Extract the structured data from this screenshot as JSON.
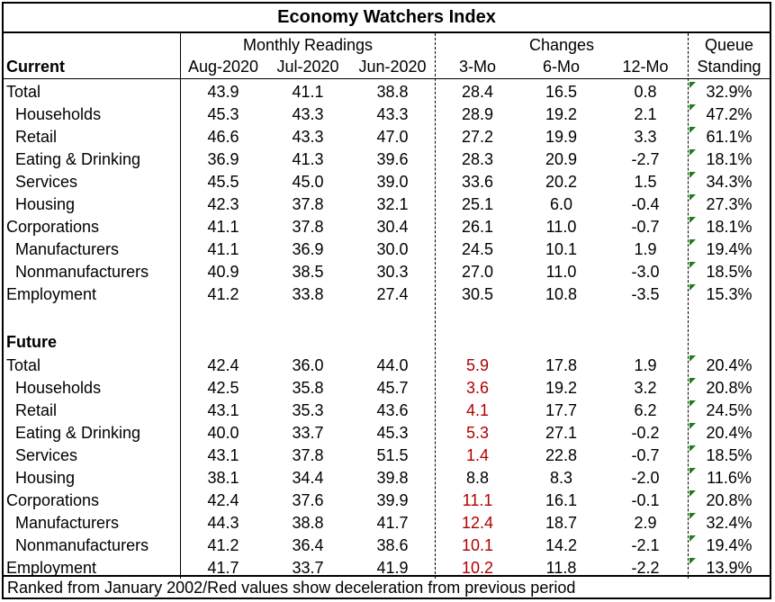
{
  "title": "Economy Watchers Index",
  "group_headers": {
    "monthly": "Monthly Readings",
    "changes": "Changes",
    "queue_line1": "Queue",
    "queue_line2": "Standing"
  },
  "columns": [
    "Aug-2020",
    "Jul-2020",
    "Jun-2020",
    "3-Mo",
    "6-Mo",
    "12-Mo"
  ],
  "sections": [
    {
      "label": "Current",
      "rows": [
        {
          "name": "Total",
          "indent": false,
          "values": [
            "43.9",
            "41.1",
            "38.8",
            "28.4",
            "16.5",
            "0.8"
          ],
          "queue": "32.9%",
          "red3mo": false
        },
        {
          "name": "Households",
          "indent": true,
          "values": [
            "45.3",
            "43.3",
            "43.3",
            "28.9",
            "19.2",
            "2.1"
          ],
          "queue": "47.2%",
          "red3mo": false
        },
        {
          "name": "Retail",
          "indent": true,
          "values": [
            "46.6",
            "43.3",
            "47.0",
            "27.2",
            "19.9",
            "3.3"
          ],
          "queue": "61.1%",
          "red3mo": false
        },
        {
          "name": "Eating & Drinking",
          "indent": true,
          "values": [
            "36.9",
            "41.3",
            "39.6",
            "28.3",
            "20.9",
            "-2.7"
          ],
          "queue": "18.1%",
          "red3mo": false
        },
        {
          "name": "Services",
          "indent": true,
          "values": [
            "45.5",
            "45.0",
            "39.0",
            "33.6",
            "20.2",
            "1.5"
          ],
          "queue": "34.3%",
          "red3mo": false
        },
        {
          "name": "Housing",
          "indent": true,
          "values": [
            "42.3",
            "37.8",
            "32.1",
            "25.1",
            "6.0",
            "-0.4"
          ],
          "queue": "27.3%",
          "red3mo": false
        },
        {
          "name": "Corporations",
          "indent": false,
          "values": [
            "41.1",
            "37.8",
            "30.4",
            "26.1",
            "11.0",
            "-0.7"
          ],
          "queue": "18.1%",
          "red3mo": false
        },
        {
          "name": "Manufacturers",
          "indent": true,
          "values": [
            "41.1",
            "36.9",
            "30.0",
            "24.5",
            "10.1",
            "1.9"
          ],
          "queue": "19.4%",
          "red3mo": false
        },
        {
          "name": "Nonmanufacturers",
          "indent": true,
          "values": [
            "40.9",
            "38.5",
            "30.3",
            "27.0",
            "11.0",
            "-3.0"
          ],
          "queue": "18.5%",
          "red3mo": false
        },
        {
          "name": "Employment",
          "indent": false,
          "values": [
            "41.2",
            "33.8",
            "27.4",
            "30.5",
            "10.8",
            "-3.5"
          ],
          "queue": "15.3%",
          "red3mo": false
        }
      ]
    },
    {
      "label": "Future",
      "rows": [
        {
          "name": "Total",
          "indent": false,
          "values": [
            "42.4",
            "36.0",
            "44.0",
            "5.9",
            "17.8",
            "1.9"
          ],
          "queue": "20.4%",
          "red3mo": true
        },
        {
          "name": "Households",
          "indent": true,
          "values": [
            "42.5",
            "35.8",
            "45.7",
            "3.6",
            "19.2",
            "3.2"
          ],
          "queue": "20.8%",
          "red3mo": true
        },
        {
          "name": "Retail",
          "indent": true,
          "values": [
            "43.1",
            "35.3",
            "43.6",
            "4.1",
            "17.7",
            "6.2"
          ],
          "queue": "24.5%",
          "red3mo": true
        },
        {
          "name": "Eating & Drinking",
          "indent": true,
          "values": [
            "40.0",
            "33.7",
            "45.3",
            "5.3",
            "27.1",
            "-0.2"
          ],
          "queue": "20.4%",
          "red3mo": true
        },
        {
          "name": "Services",
          "indent": true,
          "values": [
            "43.1",
            "37.8",
            "51.5",
            "1.4",
            "22.8",
            "-0.7"
          ],
          "queue": "18.5%",
          "red3mo": true
        },
        {
          "name": "Housing",
          "indent": true,
          "values": [
            "38.1",
            "34.4",
            "39.8",
            "8.8",
            "8.3",
            "-2.0"
          ],
          "queue": "11.6%",
          "red3mo": false
        },
        {
          "name": "Corporations",
          "indent": false,
          "values": [
            "42.4",
            "37.6",
            "39.9",
            "11.1",
            "16.1",
            "-0.1"
          ],
          "queue": "20.8%",
          "red3mo": true
        },
        {
          "name": "Manufacturers",
          "indent": true,
          "values": [
            "44.3",
            "38.8",
            "41.7",
            "12.4",
            "18.7",
            "2.9"
          ],
          "queue": "32.4%",
          "red3mo": true
        },
        {
          "name": "Nonmanufacturers",
          "indent": true,
          "values": [
            "41.2",
            "36.4",
            "38.6",
            "10.1",
            "14.2",
            "-2.1"
          ],
          "queue": "19.4%",
          "red3mo": true
        },
        {
          "name": "Employment",
          "indent": false,
          "values": [
            "41.7",
            "33.7",
            "41.9",
            "10.2",
            "11.8",
            "-2.2"
          ],
          "queue": "13.9%",
          "red3mo": true
        }
      ]
    }
  ],
  "footer": "Ranked from January 2002/Red values show deceleration from previous period",
  "colors": {
    "red_value": "#b00000",
    "comment_marker": "#1a7f1a"
  }
}
